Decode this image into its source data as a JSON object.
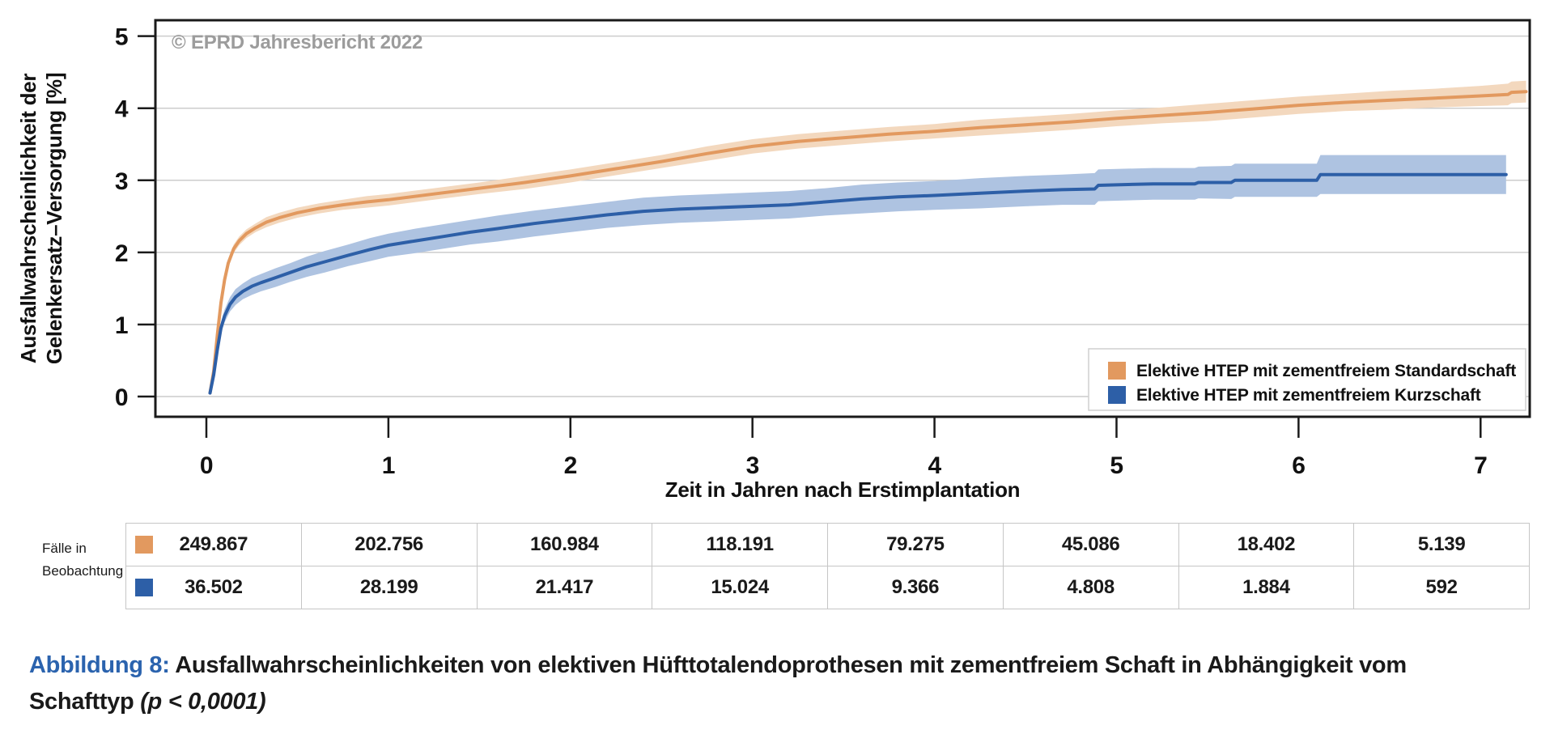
{
  "chart": {
    "copyright": "© EPRD Jahresbericht 2022",
    "xlabel": "Zeit in Jahren nach Erstimplantation",
    "ylabel_line1": "Ausfallwahrscheinlichkeit der",
    "ylabel_line2": "Gelenkersatz–Versorgung [%]"
  },
  "chart_data": {
    "type": "line",
    "title": "",
    "xlabel": "Zeit in Jahren nach Erstimplantation",
    "ylabel": "Ausfallwahrscheinlichkeit der Gelenkersatz–Versorgung [%]",
    "xlim": [
      -0.28,
      7.27
    ],
    "ylim": [
      -0.28,
      5.22
    ],
    "x_ticks": [
      0,
      1,
      2,
      3,
      4,
      5,
      6,
      7
    ],
    "y_ticks": [
      0,
      1,
      2,
      3,
      4,
      5
    ],
    "grid": "horizontal",
    "legend_position": "inside bottom-right",
    "annotation": "© EPRD Jahresbericht 2022",
    "series": [
      {
        "name": "Elektive HTEP mit zementfreiem Standardschaft",
        "color": "#E2995F",
        "band_color": "#F3D8BE",
        "points_format": [
          "year",
          "failure_probability_pct",
          "ci_halfwidth_pct"
        ],
        "points": [
          [
            0.02,
            0.05,
            0.02
          ],
          [
            0.04,
            0.35,
            0.03
          ],
          [
            0.06,
            0.85,
            0.04
          ],
          [
            0.08,
            1.3,
            0.05
          ],
          [
            0.1,
            1.62,
            0.05
          ],
          [
            0.12,
            1.85,
            0.06
          ],
          [
            0.15,
            2.05,
            0.06
          ],
          [
            0.18,
            2.16,
            0.06
          ],
          [
            0.22,
            2.26,
            0.06
          ],
          [
            0.27,
            2.34,
            0.06
          ],
          [
            0.33,
            2.42,
            0.07
          ],
          [
            0.4,
            2.48,
            0.07
          ],
          [
            0.5,
            2.55,
            0.07
          ],
          [
            0.62,
            2.61,
            0.07
          ],
          [
            0.75,
            2.66,
            0.07
          ],
          [
            0.88,
            2.7,
            0.08
          ],
          [
            1.0,
            2.73,
            0.08
          ],
          [
            1.25,
            2.81,
            0.08
          ],
          [
            1.5,
            2.89,
            0.08
          ],
          [
            1.75,
            2.97,
            0.09
          ],
          [
            2.0,
            3.06,
            0.09
          ],
          [
            2.25,
            3.16,
            0.09
          ],
          [
            2.5,
            3.26,
            0.09
          ],
          [
            2.75,
            3.37,
            0.1
          ],
          [
            3.0,
            3.47,
            0.1
          ],
          [
            3.25,
            3.54,
            0.1
          ],
          [
            3.5,
            3.59,
            0.1
          ],
          [
            3.75,
            3.64,
            0.1
          ],
          [
            4.0,
            3.68,
            0.1
          ],
          [
            4.25,
            3.73,
            0.11
          ],
          [
            4.5,
            3.77,
            0.11
          ],
          [
            4.75,
            3.81,
            0.11
          ],
          [
            5.0,
            3.86,
            0.11
          ],
          [
            5.25,
            3.9,
            0.11
          ],
          [
            5.5,
            3.94,
            0.12
          ],
          [
            5.75,
            3.99,
            0.12
          ],
          [
            6.0,
            4.04,
            0.12
          ],
          [
            6.25,
            4.08,
            0.12
          ],
          [
            6.5,
            4.11,
            0.13
          ],
          [
            6.75,
            4.14,
            0.13
          ],
          [
            7.0,
            4.17,
            0.14
          ],
          [
            7.15,
            4.19,
            0.15
          ],
          [
            7.17,
            4.22,
            0.15
          ],
          [
            7.25,
            4.23,
            0.15
          ]
        ]
      },
      {
        "name": "Elektive HTEP mit zementfreiem Kurzschaft",
        "color": "#2D5FA7",
        "band_color": "#AEC3E1",
        "points_format": [
          "year",
          "failure_probability_pct",
          "ci_halfwidth_pct"
        ],
        "points": [
          [
            0.02,
            0.05,
            0.03
          ],
          [
            0.04,
            0.3,
            0.05
          ],
          [
            0.06,
            0.65,
            0.07
          ],
          [
            0.08,
            0.95,
            0.08
          ],
          [
            0.1,
            1.12,
            0.09
          ],
          [
            0.13,
            1.28,
            0.1
          ],
          [
            0.16,
            1.38,
            0.11
          ],
          [
            0.2,
            1.46,
            0.11
          ],
          [
            0.25,
            1.53,
            0.12
          ],
          [
            0.3,
            1.58,
            0.12
          ],
          [
            0.38,
            1.65,
            0.13
          ],
          [
            0.46,
            1.72,
            0.13
          ],
          [
            0.55,
            1.8,
            0.14
          ],
          [
            0.65,
            1.87,
            0.15
          ],
          [
            0.78,
            1.96,
            0.15
          ],
          [
            0.9,
            2.04,
            0.16
          ],
          [
            1.0,
            2.1,
            0.16
          ],
          [
            1.15,
            2.16,
            0.17
          ],
          [
            1.3,
            2.22,
            0.17
          ],
          [
            1.45,
            2.28,
            0.17
          ],
          [
            1.6,
            2.33,
            0.18
          ],
          [
            1.8,
            2.4,
            0.18
          ],
          [
            2.0,
            2.46,
            0.18
          ],
          [
            2.2,
            2.52,
            0.18
          ],
          [
            2.4,
            2.57,
            0.19
          ],
          [
            2.6,
            2.6,
            0.19
          ],
          [
            2.8,
            2.62,
            0.19
          ],
          [
            3.0,
            2.64,
            0.19
          ],
          [
            3.2,
            2.66,
            0.19
          ],
          [
            3.4,
            2.7,
            0.19
          ],
          [
            3.6,
            2.74,
            0.2
          ],
          [
            3.8,
            2.77,
            0.2
          ],
          [
            4.0,
            2.79,
            0.2
          ],
          [
            4.25,
            2.82,
            0.21
          ],
          [
            4.5,
            2.85,
            0.21
          ],
          [
            4.7,
            2.87,
            0.21
          ],
          [
            4.88,
            2.88,
            0.22
          ],
          [
            4.9,
            2.93,
            0.22
          ],
          [
            5.2,
            2.95,
            0.22
          ],
          [
            5.43,
            2.95,
            0.22
          ],
          [
            5.45,
            2.97,
            0.22
          ],
          [
            5.63,
            2.97,
            0.23
          ],
          [
            5.65,
            3.0,
            0.23
          ],
          [
            6.1,
            3.0,
            0.23
          ],
          [
            6.12,
            3.08,
            0.27
          ],
          [
            6.6,
            3.08,
            0.27
          ],
          [
            7.14,
            3.08,
            0.27
          ]
        ]
      }
    ]
  },
  "table": {
    "row_header": [
      "Fälle in",
      "Beobachtung"
    ],
    "rows": [
      {
        "series": "standardschaft",
        "color": "#E2995F",
        "values": [
          "249.867",
          "202.756",
          "160.984",
          "118.191",
          "79.275",
          "45.086",
          "18.402",
          "5.139"
        ]
      },
      {
        "series": "kurzschaft",
        "color": "#2D5FA7",
        "values": [
          "36.502",
          "28.199",
          "21.417",
          "15.024",
          "9.366",
          "4.808",
          "1.884",
          "592"
        ]
      }
    ]
  },
  "caption": {
    "label": "Abbildung 8:",
    "label_color": "#2B63AE",
    "text_line1": "Ausfallwahrscheinlichkeiten von elektiven Hüfttotalendoprothesen mit zementfreiem Schaft in Abhängigkeit vom",
    "text_line2": "Schafttyp ",
    "p_italic": "(p < 0,0001)"
  }
}
